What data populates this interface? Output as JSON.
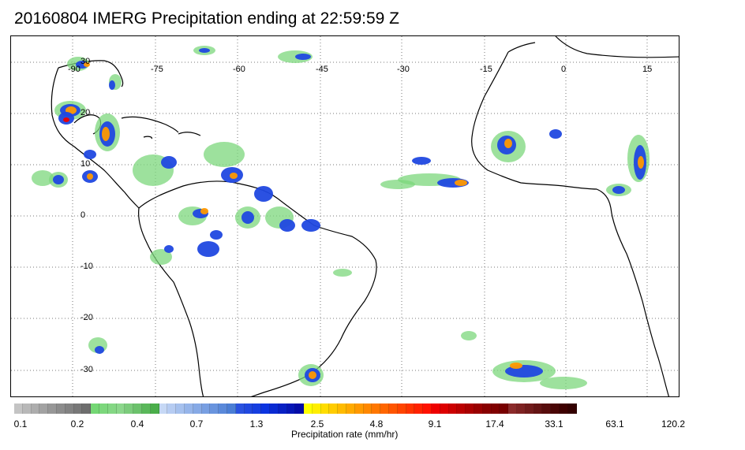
{
  "title": "20160804 IMERG Precipitation ending at 22:59:59 Z",
  "map": {
    "lon_labels": [
      "-90",
      "-75",
      "-60",
      "-45",
      "-30",
      "-15",
      "0",
      "15"
    ],
    "lat_labels": [
      "30",
      "20",
      "10",
      "0",
      "-10",
      "-20",
      "-30"
    ],
    "land_color": "#ffffff",
    "ocean_color": "#ffffff",
    "gridline_style": "dotted"
  },
  "colorbar": {
    "label": "Precipitation rate (mm/hr)",
    "tick_labels": [
      "0.1",
      "0.2",
      "0.4",
      "0.7",
      "1.3",
      "2.5",
      "4.8",
      "9.1",
      "17.4",
      "33.1",
      "63.1",
      "120.2"
    ],
    "colors": [
      "#c4c4c4",
      "#b8b8b8",
      "#adadad",
      "#a2a2a2",
      "#979797",
      "#8c8c8c",
      "#828282",
      "#787878",
      "#6e6e6e",
      "#74d774",
      "#7cd77c",
      "#84d784",
      "#8cd78c",
      "#7ccc7c",
      "#6cc26c",
      "#5ab85a",
      "#4aae4a",
      "#c6d8f5",
      "#b6ccf2",
      "#a6c1ee",
      "#96b5ea",
      "#87aae6",
      "#789fe2",
      "#6994de",
      "#5a89da",
      "#4b7ed5",
      "#2a52e0",
      "#2048e0",
      "#163ee0",
      "#0c34e0",
      "#0a2ad2",
      "#0820c4",
      "#0616b6",
      "#040ca8",
      "#ffff00",
      "#ffee00",
      "#ffdd00",
      "#ffcc00",
      "#ffbb00",
      "#ffaa00",
      "#ff9900",
      "#ff8800",
      "#ff7700",
      "#ff6600",
      "#ff5500",
      "#ff4400",
      "#ff3300",
      "#ff2200",
      "#ff1100",
      "#ee0000",
      "#dd0000",
      "#cc0000",
      "#bb0000",
      "#aa0000",
      "#990000",
      "#880000",
      "#800000",
      "#780000",
      "#8b2a2a",
      "#7e2222",
      "#711b1b",
      "#641414",
      "#570d0d",
      "#4a0606",
      "#3e0000",
      "#330000"
    ]
  }
}
